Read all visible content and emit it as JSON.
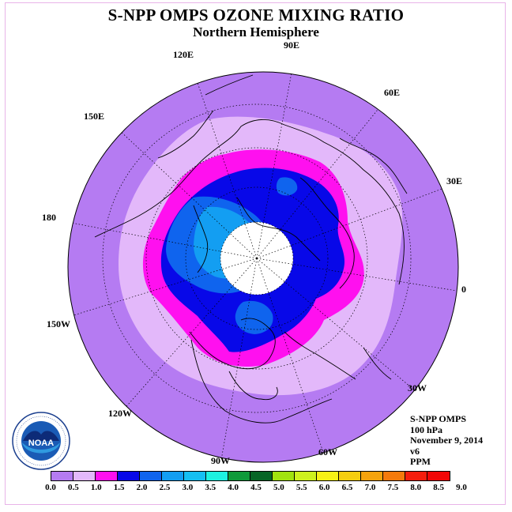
{
  "title": "S-NPP OMPS OZONE MIXING RATIO",
  "subtitle": "Northern Hemisphere",
  "longitude_labels": [
    "90E",
    "60E",
    "30E",
    "0",
    "30W",
    "60W",
    "90W",
    "120W",
    "150W",
    "180",
    "150E",
    "120E"
  ],
  "info": {
    "instrument": "S-NPP OMPS",
    "level": "100 hPa",
    "date": "November 9, 2014",
    "version": "v6",
    "units": "PPM"
  },
  "colorbar": {
    "ticks": [
      "0.0",
      "0.5",
      "1.0",
      "1.5",
      "2.0",
      "2.5",
      "3.0",
      "3.5",
      "4.0",
      "4.5",
      "5.0",
      "5.5",
      "6.0",
      "6.5",
      "7.0",
      "7.5",
      "8.0",
      "8.5",
      "9.0"
    ],
    "colors": [
      "#b57bf2",
      "#e3b8fa",
      "#ff10ef",
      "#0808e8",
      "#0f64ee",
      "#139ef2",
      "#15bff2",
      "#1df2e0",
      "#0f9a3a",
      "#076526",
      "#a1e30f",
      "#cef21e",
      "#f7f215",
      "#f5ce0f",
      "#f5a30d",
      "#f57a0b",
      "#f51e0d",
      "#f20707",
      "#7b5436"
    ]
  },
  "logo": {
    "text": "NOAA",
    "ring_text": "NATIONAL OCEANIC AND ATMOSPHERIC ADMINISTRATION · U.S. DEPARTMENT OF COMMERCE"
  }
}
